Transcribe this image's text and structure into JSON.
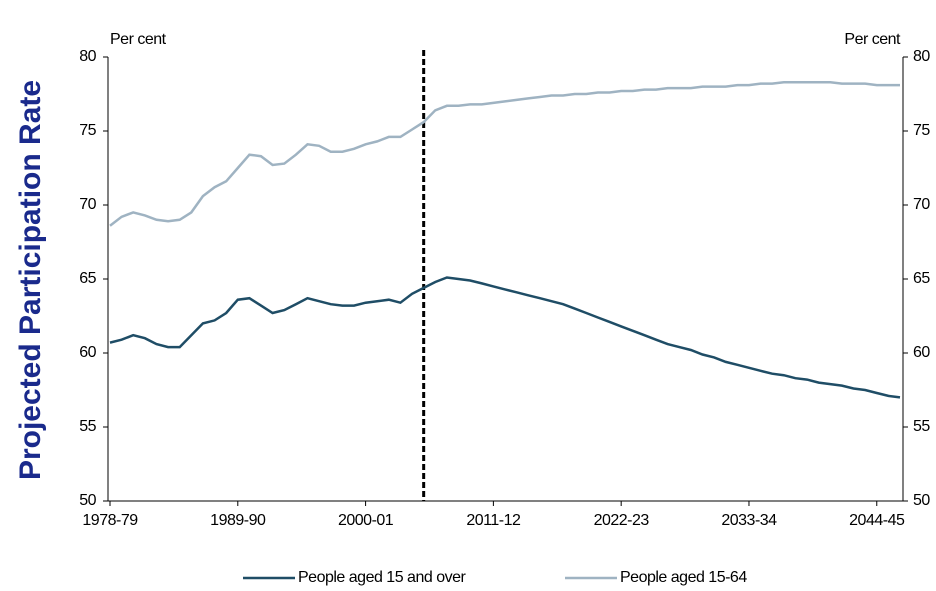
{
  "chart_data": {
    "type": "line",
    "ylabel": "Projected Participation Rate",
    "yunit": "Per cent",
    "y2unit": "Per cent",
    "categories": [
      "1978-79",
      null,
      null,
      null,
      null,
      null,
      null,
      null,
      null,
      null,
      null,
      "1989-90",
      null,
      null,
      null,
      null,
      null,
      null,
      null,
      null,
      null,
      null,
      "2000-01",
      null,
      null,
      null,
      null,
      null,
      null,
      null,
      null,
      null,
      null,
      "2011-12",
      null,
      null,
      null,
      null,
      null,
      null,
      null,
      null,
      null,
      null,
      "2022-23",
      null,
      null,
      null,
      null,
      null,
      null,
      null,
      null,
      null,
      null,
      "2033-34",
      null,
      null,
      null,
      null,
      null,
      null,
      null,
      null,
      null,
      null,
      "2044-45",
      null,
      null
    ],
    "projection_start": 27,
    "ylim": [
      50,
      80
    ],
    "yticks": [
      50,
      55,
      60,
      65,
      70,
      75,
      80
    ],
    "y2lim": [
      50,
      80
    ],
    "y2ticks": [
      50,
      55,
      60,
      65,
      70,
      75,
      80
    ],
    "series": [
      {
        "name": "People aged 15 and over",
        "color": "#1f4d66",
        "values": [
          60.7,
          60.9,
          61.2,
          61.0,
          60.6,
          60.4,
          60.4,
          61.2,
          62.0,
          62.2,
          62.7,
          63.6,
          63.7,
          63.2,
          62.7,
          62.9,
          63.3,
          63.7,
          63.5,
          63.3,
          63.2,
          63.2,
          63.4,
          63.5,
          63.6,
          63.4,
          64.0,
          64.4,
          64.8,
          65.1,
          65.0,
          64.9,
          64.7,
          64.5,
          64.3,
          64.1,
          63.9,
          63.7,
          63.5,
          63.3,
          63.0,
          62.7,
          62.4,
          62.1,
          61.8,
          61.5,
          61.2,
          60.9,
          60.6,
          60.4,
          60.2,
          59.9,
          59.7,
          59.4,
          59.2,
          59.0,
          58.8,
          58.6,
          58.5,
          58.3,
          58.2,
          58.0,
          57.9,
          57.8,
          57.6,
          57.5,
          57.3,
          57.1,
          57.0
        ]
      },
      {
        "name": "People aged 15-64",
        "color": "#9fb3c2",
        "values": [
          68.6,
          69.2,
          69.5,
          69.3,
          69.0,
          68.9,
          69.0,
          69.5,
          70.6,
          71.2,
          71.6,
          72.5,
          73.4,
          73.3,
          72.7,
          72.8,
          73.4,
          74.1,
          74.0,
          73.6,
          73.6,
          73.8,
          74.1,
          74.3,
          74.6,
          74.6,
          75.1,
          75.6,
          76.4,
          76.7,
          76.7,
          76.8,
          76.8,
          76.9,
          77.0,
          77.1,
          77.2,
          77.3,
          77.4,
          77.4,
          77.5,
          77.5,
          77.6,
          77.6,
          77.7,
          77.7,
          77.8,
          77.8,
          77.9,
          77.9,
          77.9,
          78.0,
          78.0,
          78.0,
          78.1,
          78.1,
          78.2,
          78.2,
          78.3,
          78.3,
          78.3,
          78.3,
          78.3,
          78.2,
          78.2,
          78.2,
          78.1,
          78.1,
          78.1
        ]
      }
    ]
  }
}
